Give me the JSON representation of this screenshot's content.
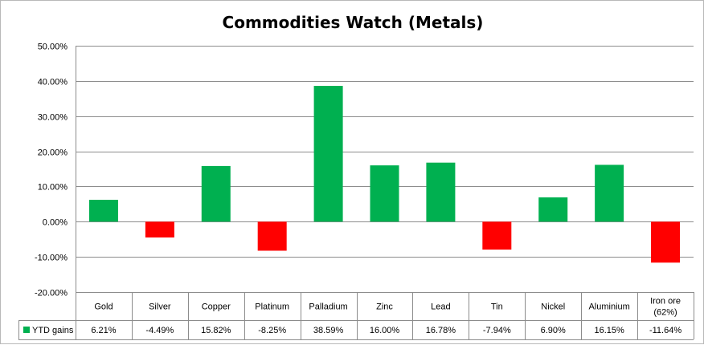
{
  "chart_data": {
    "type": "bar",
    "title": "Commodities Watch (Metals)",
    "categories": [
      "Gold",
      "Silver",
      "Copper",
      "Platinum",
      "Palladium",
      "Zinc",
      "Lead",
      "Tin",
      "Nickel",
      "Aluminium",
      "Iron ore (62%)"
    ],
    "category_lines": [
      [
        "Gold"
      ],
      [
        "Silver"
      ],
      [
        "Copper"
      ],
      [
        "Platinum"
      ],
      [
        "Palladium"
      ],
      [
        "Zinc"
      ],
      [
        "Lead"
      ],
      [
        "Tin"
      ],
      [
        "Nickel"
      ],
      [
        "Aluminium"
      ],
      [
        "Iron ore",
        "(62%)"
      ]
    ],
    "series": [
      {
        "name": "YTD gains",
        "values": [
          6.21,
          -4.49,
          15.82,
          -8.25,
          38.59,
          16.0,
          16.78,
          -7.94,
          6.9,
          16.15,
          -11.64
        ],
        "labels": [
          "6.21%",
          "-4.49%",
          "15.82%",
          "-8.25%",
          "38.59%",
          "16.00%",
          "16.78%",
          "-7.94%",
          "6.90%",
          "16.15%",
          "-11.64%"
        ]
      }
    ],
    "ylim": [
      -20,
      50
    ],
    "yticks": [
      50,
      40,
      30,
      20,
      10,
      0,
      -10,
      -20
    ],
    "ytick_labels": [
      "50.00%",
      "40.00%",
      "30.00%",
      "20.00%",
      "10.00%",
      "0.00%",
      "-10.00%",
      "-20.00%"
    ],
    "positive_color": "#00b050",
    "negative_color": "#ff0000",
    "gridlines": true,
    "legend_placement": "data-table-left",
    "data_table": true
  }
}
